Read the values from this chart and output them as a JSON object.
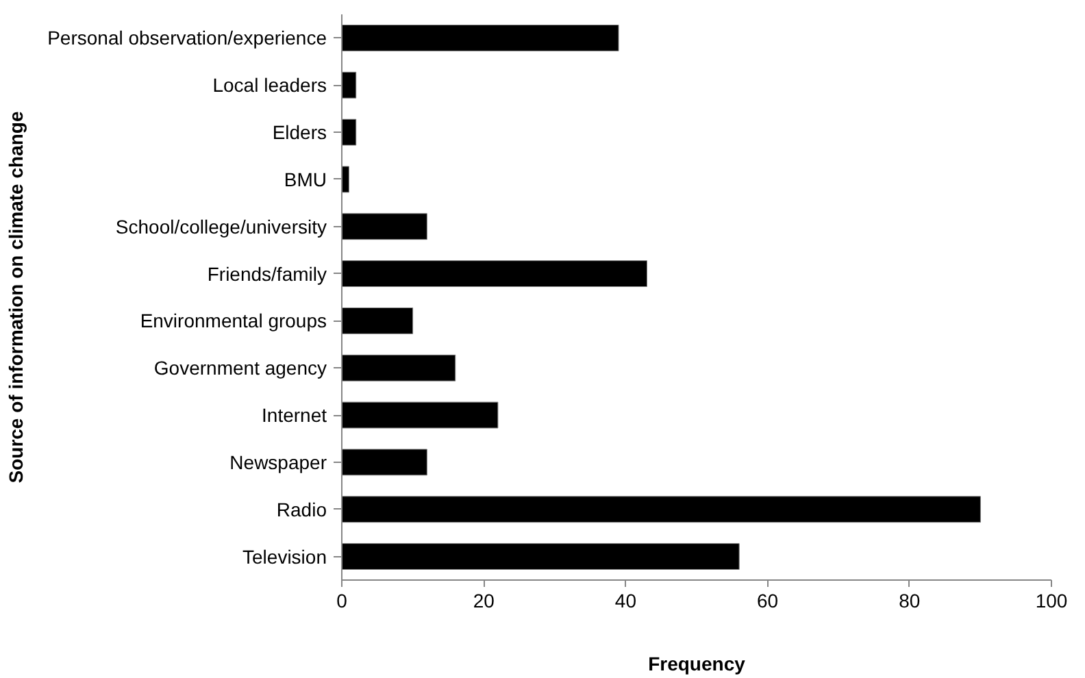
{
  "chart_data": {
    "type": "bar",
    "orientation": "horizontal",
    "xlabel": "Frequency",
    "ylabel": "Source of information on climate change",
    "categories": [
      "Personal observation/experience",
      "Local leaders",
      "Elders",
      "BMU",
      "School/college/university",
      "Friends/family",
      "Environmental groups",
      "Government agency",
      "Internet",
      "Newspaper",
      "Radio",
      "Television"
    ],
    "values": [
      39,
      2,
      2,
      1,
      12,
      43,
      10,
      16,
      22,
      12,
      90,
      56
    ],
    "color": "#000000",
    "xlim": [
      0,
      100
    ],
    "xticks": [
      0,
      20,
      40,
      60,
      80,
      100
    ],
    "grid": false
  }
}
